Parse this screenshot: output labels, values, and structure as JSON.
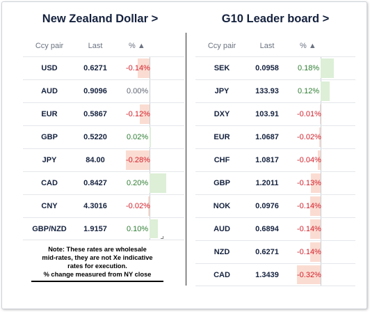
{
  "left": {
    "title": "New Zealand Dollar >",
    "headers": {
      "pair": "Ccy pair",
      "last": "Last",
      "pct": "% ▲"
    },
    "rows": [
      {
        "pair": "USD",
        "last": "0.6271",
        "pct": "-0.14%",
        "value": -0.14
      },
      {
        "pair": "AUD",
        "last": "0.9096",
        "pct": "0.00%",
        "value": 0.0
      },
      {
        "pair": "EUR",
        "last": "0.5867",
        "pct": "-0.12%",
        "value": -0.12
      },
      {
        "pair": "GBP",
        "last": "0.5220",
        "pct": "0.02%",
        "value": 0.02
      },
      {
        "pair": "JPY",
        "last": "84.00",
        "pct": "-0.28%",
        "value": -0.28
      },
      {
        "pair": "CAD",
        "last": "0.8427",
        "pct": "0.20%",
        "value": 0.2
      },
      {
        "pair": "CNY",
        "last": "4.3016",
        "pct": "-0.02%",
        "value": -0.02
      },
      {
        "pair": "GBP/NZD",
        "last": "1.9157",
        "pct": "0.10%",
        "value": 0.1
      }
    ],
    "note": [
      "Note: These rates are wholesale",
      "mid-rates, they are not Xe indicative",
      "rates for execution.",
      "% change measured from NY close"
    ]
  },
  "right": {
    "title": "G10 Leader board >",
    "headers": {
      "pair": "Ccy pair",
      "last": "Last",
      "pct": "% ▲"
    },
    "rows": [
      {
        "pair": "SEK",
        "last": "0.0958",
        "pct": "0.18%",
        "value": 0.18
      },
      {
        "pair": "JPY",
        "last": "133.93",
        "pct": "0.12%",
        "value": 0.12
      },
      {
        "pair": "DXY",
        "last": "103.91",
        "pct": "-0.01%",
        "value": -0.01
      },
      {
        "pair": "EUR",
        "last": "1.0687",
        "pct": "-0.02%",
        "value": -0.02
      },
      {
        "pair": "CHF",
        "last": "1.0817",
        "pct": "-0.04%",
        "value": -0.04
      },
      {
        "pair": "GBP",
        "last": "1.2011",
        "pct": "-0.13%",
        "value": -0.13
      },
      {
        "pair": "NOK",
        "last": "0.0976",
        "pct": "-0.14%",
        "value": -0.14
      },
      {
        "pair": "AUD",
        "last": "0.6894",
        "pct": "-0.14%",
        "value": -0.14
      },
      {
        "pair": "NZD",
        "last": "0.6271",
        "pct": "-0.14%",
        "value": -0.14
      },
      {
        "pair": "CAD",
        "last": "1.3439",
        "pct": "-0.32%",
        "value": -0.32
      }
    ]
  },
  "colors": {
    "negative": "#d21f2a",
    "positive": "#2e7d32",
    "neg_bar": "#fbdcd2",
    "pos_bar": "#ddefd7"
  }
}
